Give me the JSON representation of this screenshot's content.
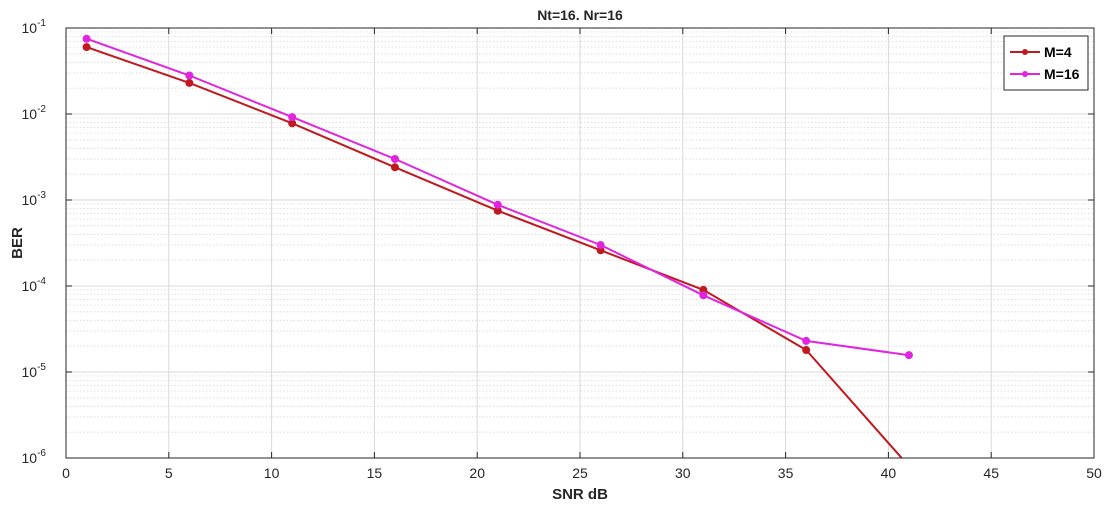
{
  "chart_data": {
    "type": "line",
    "title": "Nt=16. Nr=16",
    "xlabel": "SNR dB",
    "ylabel": "BER",
    "xlim": [
      0,
      50
    ],
    "ylim": [
      1e-06,
      0.1
    ],
    "yscale": "log",
    "grid": true,
    "minor_grid": true,
    "legend_position": "top-right",
    "x_ticks": [
      "0",
      "5",
      "10",
      "15",
      "20",
      "25",
      "30",
      "35",
      "40",
      "45",
      "50"
    ],
    "y_ticks": [
      {
        "base": "10",
        "exp": "-6"
      },
      {
        "base": "10",
        "exp": "-5"
      },
      {
        "base": "10",
        "exp": "-4"
      },
      {
        "base": "10",
        "exp": "-3"
      },
      {
        "base": "10",
        "exp": "-2"
      },
      {
        "base": "10",
        "exp": "-1"
      }
    ],
    "series": [
      {
        "name": "M=4",
        "color": "#c0191f",
        "x": [
          1,
          6,
          11,
          16,
          21,
          26,
          31,
          36,
          41
        ],
        "y": [
          0.06,
          0.023,
          0.0078,
          0.0024,
          0.00075,
          0.00026,
          9e-05,
          1.8e-05,
          8e-07
        ]
      },
      {
        "name": "M=16",
        "color": "#e024e0",
        "x": [
          1,
          6,
          11,
          16,
          21,
          26,
          31,
          36,
          41
        ],
        "y": [
          0.075,
          0.028,
          0.0092,
          0.003,
          0.00088,
          0.0003,
          7.8e-05,
          2.3e-05,
          1.57e-05
        ]
      }
    ]
  }
}
